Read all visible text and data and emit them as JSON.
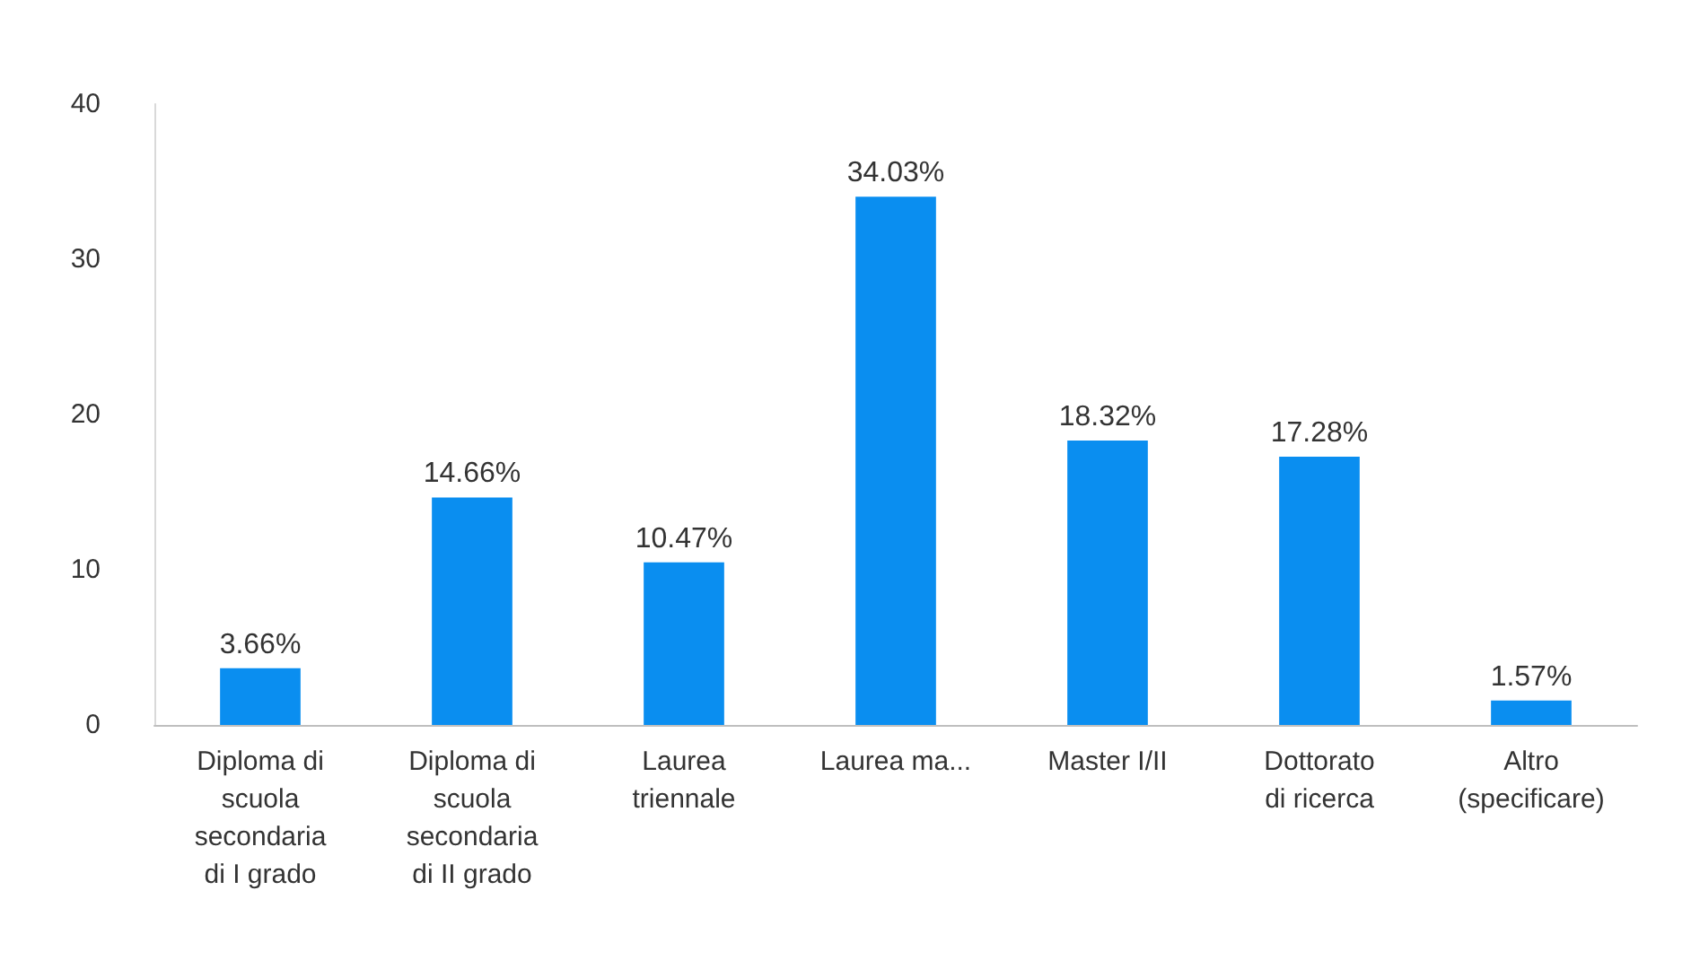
{
  "chart_data": {
    "type": "bar",
    "categories": [
      "Diploma di\nscuola\nsecondaria\ndi I grado",
      "Diploma di\nscuola\nsecondaria\ndi II grado",
      "Laurea\ntriennale",
      "Laurea ma...",
      "Master I/II",
      "Dottorato\ndi ricerca",
      "Altro\n(specificare)"
    ],
    "values": [
      3.66,
      14.66,
      10.47,
      34.03,
      18.32,
      17.28,
      1.57
    ],
    "value_labels": [
      "3.66%",
      "14.66%",
      "10.47%",
      "34.03%",
      "18.32%",
      "17.28%",
      "1.57%"
    ],
    "color": "#0a8ef0",
    "ylim": [
      0,
      40
    ],
    "yticks": [
      0,
      10,
      20,
      30,
      40
    ],
    "grid": false
  }
}
